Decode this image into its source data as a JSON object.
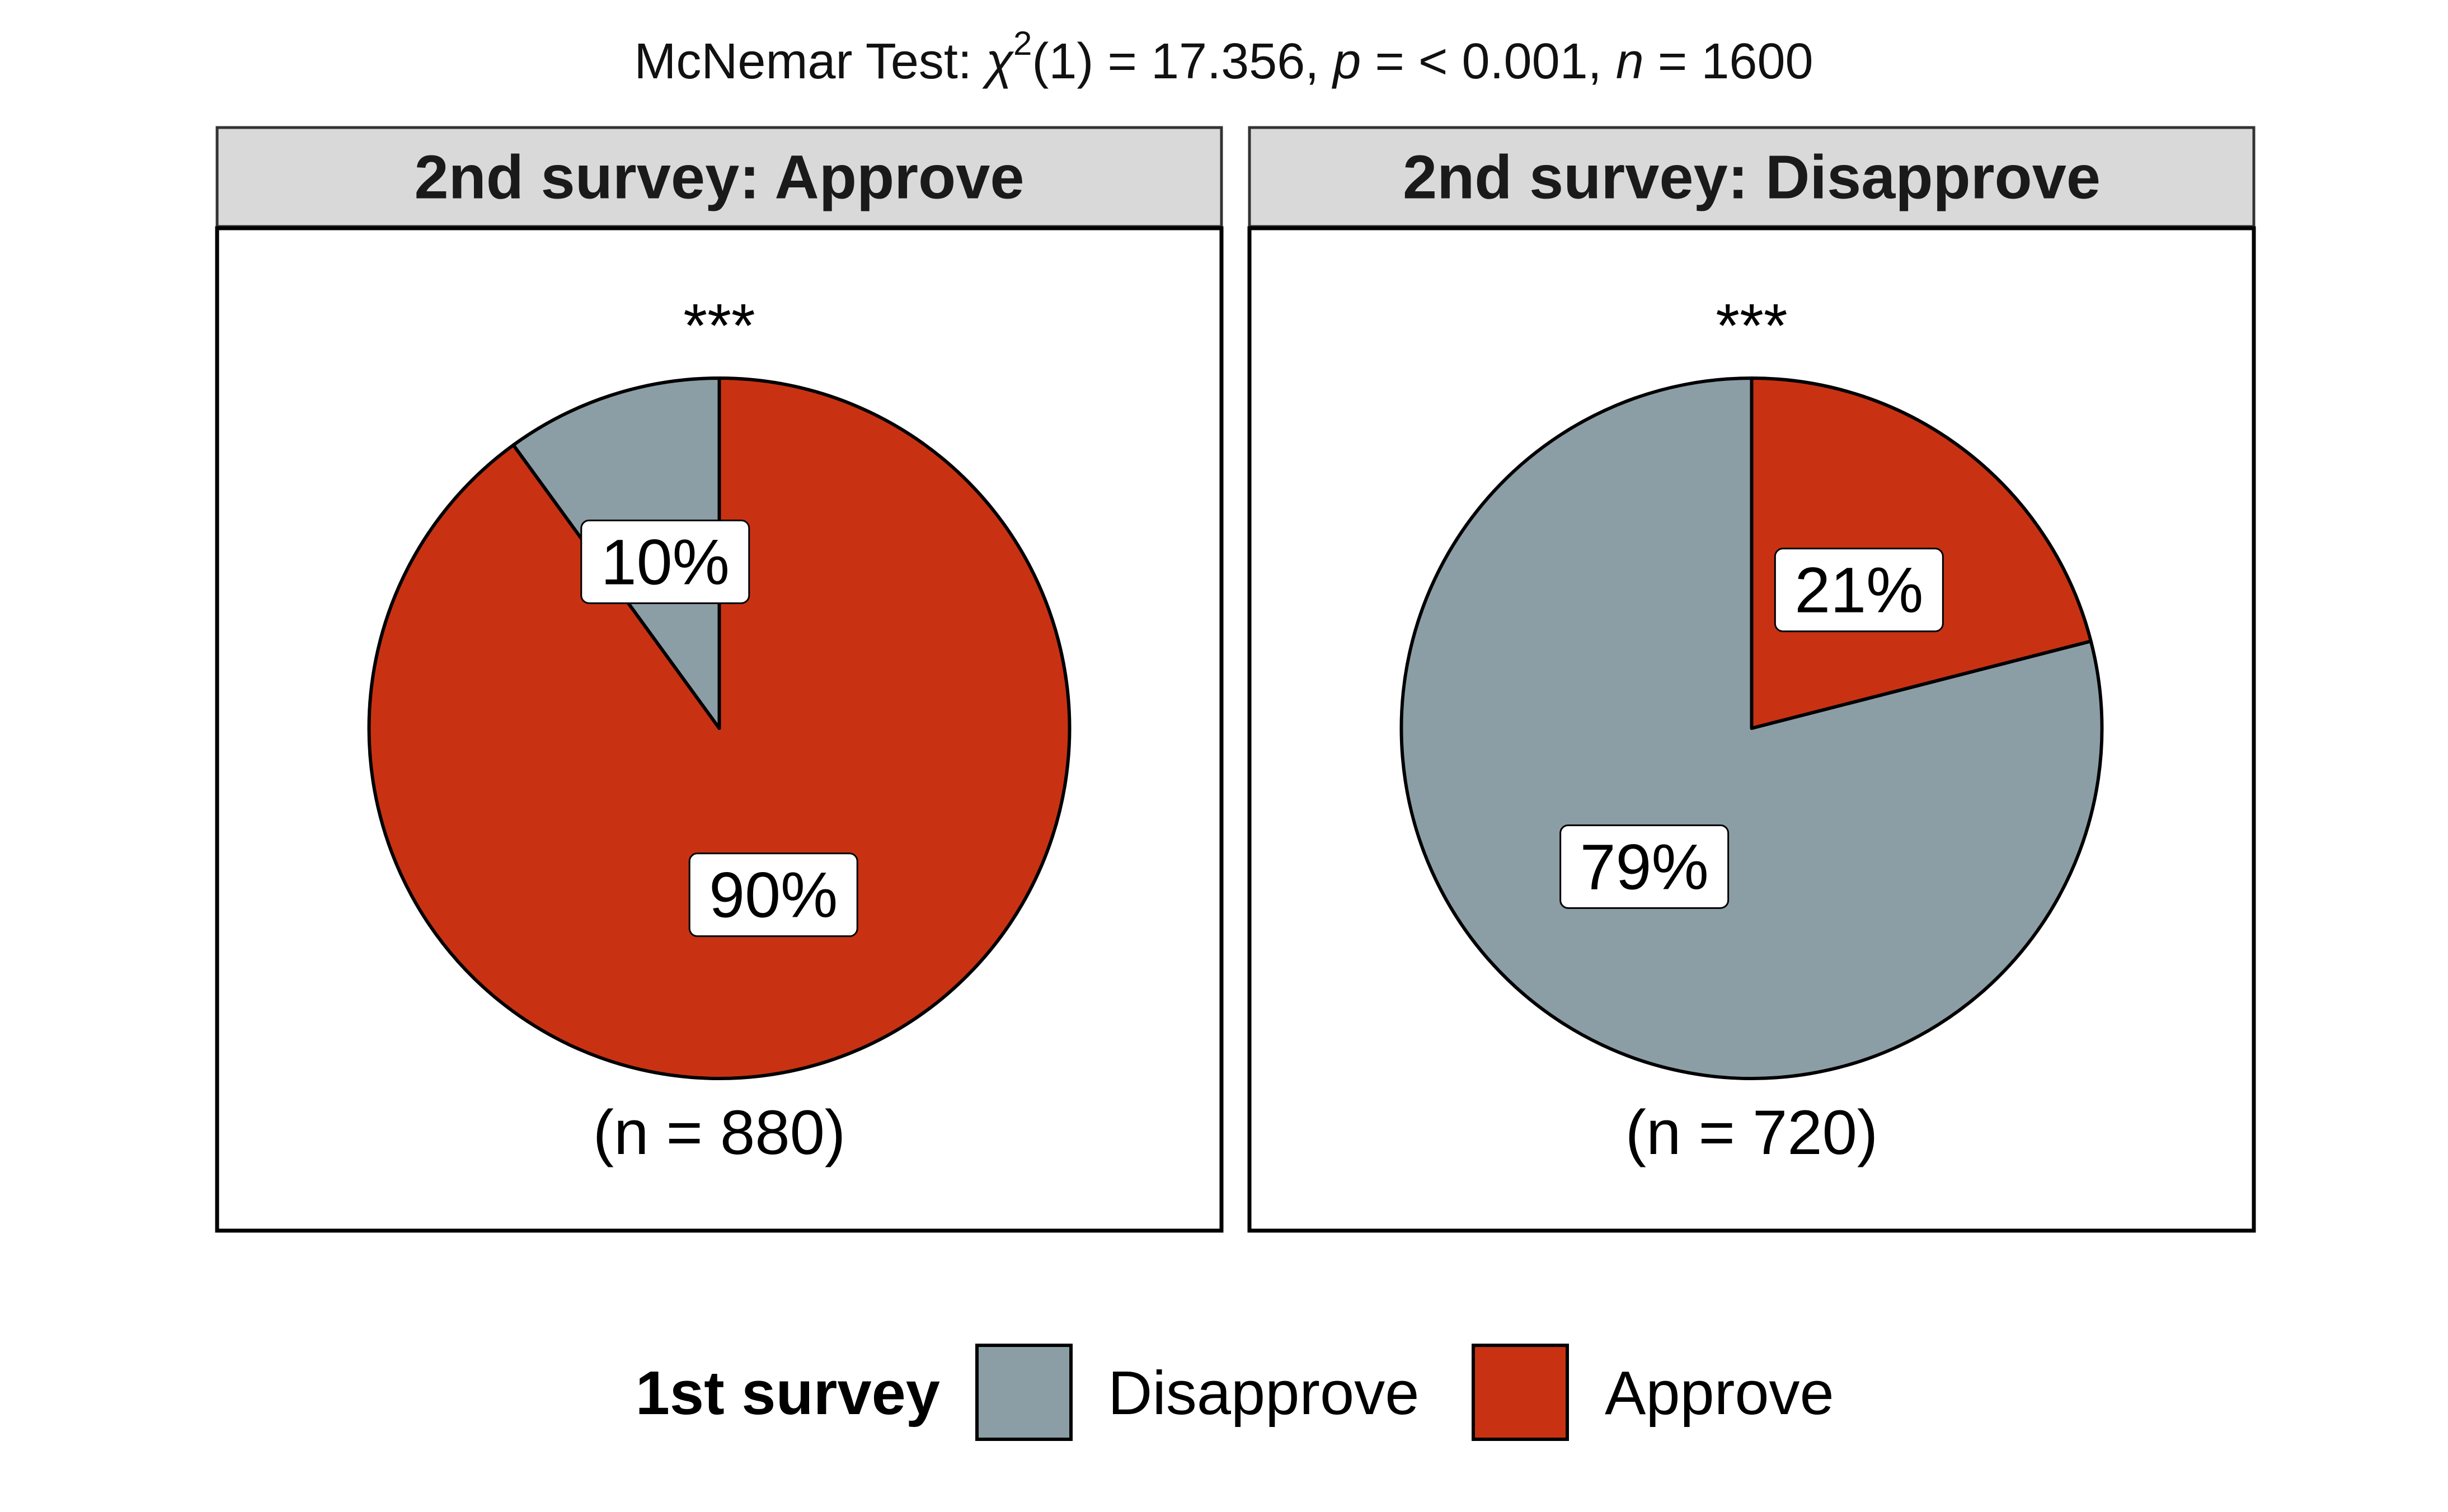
{
  "title": {
    "prefix": "McNemar Test: ",
    "chi": "χ",
    "sup": "2",
    "df": "(1) = 17.356, ",
    "p": "p",
    "p_rest": " = < 0.001, ",
    "n": "n",
    "n_rest": " = 1600"
  },
  "colors": {
    "Disapprove": "#8C9EA5",
    "Approve": "#C83213",
    "strip": "#D9D9D9",
    "outline": "#000000"
  },
  "chart_data": {
    "type": "pie",
    "test": "McNemar Test",
    "statistic": {
      "chi_squared": 17.356,
      "df": 1,
      "p": "< 0.001",
      "n": 1600
    },
    "legend": {
      "title": "1st survey",
      "position": "bottom",
      "entries": [
        "Disapprove",
        "Approve"
      ]
    },
    "panels": [
      {
        "label": "2nd survey: Approve",
        "significance": "***",
        "n_label": "(n = 880)",
        "n": 880,
        "slices": [
          {
            "name": "Disapprove",
            "value": 10,
            "label": "10%"
          },
          {
            "name": "Approve",
            "value": 90,
            "label": "90%"
          }
        ]
      },
      {
        "label": "2nd survey: Disapprove",
        "significance": "***",
        "n_label": "(n = 720)",
        "n": 720,
        "slices": [
          {
            "name": "Disapprove",
            "value": 79,
            "label": "79%"
          },
          {
            "name": "Approve",
            "value": 21,
            "label": "21%"
          }
        ]
      }
    ]
  }
}
